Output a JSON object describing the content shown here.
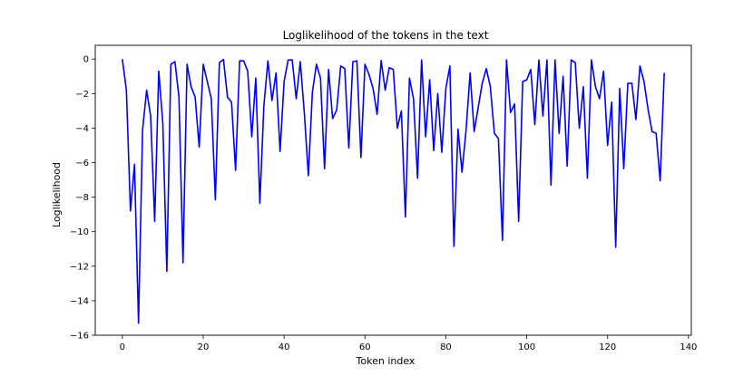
{
  "chart_data": {
    "type": "line",
    "title": "Loglikelihood of the tokens in the text",
    "xlabel": "Token index",
    "ylabel": "Loglikelihood",
    "xlim": [
      -6.7,
      140.7
    ],
    "ylim": [
      -16,
      0.8
    ],
    "xticks": [
      0,
      20,
      40,
      60,
      80,
      100,
      120,
      140
    ],
    "yticks": [
      0,
      -2,
      -4,
      -6,
      -8,
      -10,
      -12,
      -14,
      -16
    ],
    "xtick_labels": [
      "0",
      "20",
      "40",
      "60",
      "80",
      "100",
      "120",
      "140"
    ],
    "ytick_labels": [
      "0",
      "−2",
      "−4",
      "−6",
      "−8",
      "−10",
      "−12",
      "−14",
      "−16"
    ],
    "grid": false,
    "series": [
      {
        "color": "#0000ff",
        "x": [
          0,
          1,
          2,
          3,
          4,
          5,
          6,
          7,
          8,
          9,
          10,
          11,
          12,
          13,
          14,
          15,
          16,
          17,
          18,
          19,
          20,
          21,
          22,
          23,
          24,
          25,
          26,
          27,
          28,
          29,
          30,
          31,
          32,
          33,
          34,
          35,
          36,
          37,
          38,
          39,
          40,
          41,
          42,
          43,
          44,
          45,
          46,
          47,
          48,
          49,
          50,
          51,
          52,
          53,
          54,
          55,
          56,
          57,
          58,
          59,
          60,
          61,
          62,
          63,
          64,
          65,
          66,
          67,
          68,
          69,
          70,
          71,
          72,
          73,
          74,
          75,
          76,
          77,
          78,
          79,
          80,
          81,
          82,
          83,
          84,
          85,
          86,
          87,
          88,
          89,
          90,
          91,
          92,
          93,
          94,
          95,
          96,
          97,
          98,
          99,
          100,
          101,
          102,
          103,
          104,
          105,
          106,
          107,
          108,
          109,
          110,
          111,
          112,
          113,
          114,
          115,
          116,
          117,
          118,
          119,
          120,
          121,
          122,
          123,
          124,
          125,
          126,
          127,
          128,
          129,
          130,
          131,
          132,
          133,
          134
        ],
        "y": [
          0.0,
          -1.8,
          -8.8,
          -6.1,
          -15.3,
          -4.1,
          -1.8,
          -3.3,
          -9.4,
          -0.7,
          -3.7,
          -12.3,
          -0.3,
          -0.15,
          -2.2,
          -11.8,
          -0.3,
          -1.6,
          -2.2,
          -5.1,
          -0.3,
          -1.3,
          -2.3,
          -8.15,
          -0.2,
          -0.02,
          -2.2,
          -2.5,
          -6.45,
          -0.1,
          -0.1,
          -0.7,
          -4.5,
          -1.1,
          -8.35,
          -2.7,
          -0.1,
          -2.4,
          -0.8,
          -5.35,
          -1.3,
          -0.05,
          -0.05,
          -2.3,
          -0.15,
          -3.1,
          -6.75,
          -1.9,
          -0.3,
          -1.1,
          -6.35,
          -0.6,
          -3.45,
          -2.95,
          -0.4,
          -0.55,
          -5.15,
          -0.15,
          -0.1,
          -5.7,
          -0.3,
          -0.9,
          -1.7,
          -3.2,
          -0.08,
          -1.8,
          -0.5,
          -0.6,
          -4.0,
          -3.0,
          -9.15,
          -1.1,
          -2.3,
          -6.9,
          -0.05,
          -4.5,
          -1.2,
          -5.3,
          -2.0,
          -5.4,
          -1.7,
          -0.4,
          -10.85,
          -4.05,
          -6.55,
          -4.1,
          -0.8,
          -4.2,
          -2.8,
          -1.4,
          -0.55,
          -1.6,
          -4.3,
          -4.6,
          -10.5,
          -0.05,
          -3.1,
          -2.6,
          -9.4,
          -1.3,
          -1.2,
          -0.6,
          -3.8,
          -0.05,
          -3.3,
          -0.05,
          -7.3,
          -0.05,
          -4.3,
          -1.0,
          -6.2,
          -0.05,
          -0.2,
          -4.0,
          -1.6,
          -6.9,
          -0.05,
          -1.6,
          -2.3,
          -0.7,
          -5.0,
          -2.5,
          -10.9,
          -1.7,
          -6.35,
          -1.4,
          -1.4,
          -3.5,
          -0.4,
          -1.3,
          -2.9,
          -4.2,
          -4.3,
          -7.05,
          -0.8
        ]
      }
    ]
  }
}
